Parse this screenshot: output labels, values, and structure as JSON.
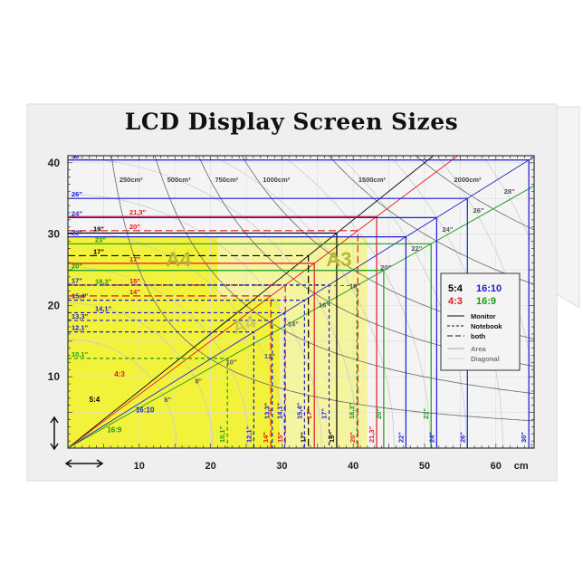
{
  "title": "LCD Display Screen Sizes",
  "chart_data": {
    "type": "diagram",
    "x_unit": "cm",
    "xlim": [
      0,
      65
    ],
    "ylim": [
      0,
      41
    ],
    "x_ticks": [
      "10",
      "20",
      "30",
      "40",
      "50",
      "60"
    ],
    "y_ticks": [
      "10",
      "20",
      "30",
      "40"
    ],
    "aspects": [
      {
        "name": "5:4",
        "w": 5,
        "h": 4,
        "color": "#000000"
      },
      {
        "name": "4:3",
        "w": 4,
        "h": 3,
        "color": "#e8161b"
      },
      {
        "name": "16:10",
        "w": 16,
        "h": 10,
        "color": "#1a1ad6"
      },
      {
        "name": "16:9",
        "w": 16,
        "h": 9,
        "color": "#1a9a1a"
      }
    ],
    "screens": [
      {
        "label": "17\"",
        "aspect": "5:4",
        "kind": "both"
      },
      {
        "label": "19\"",
        "aspect": "5:4",
        "kind": "monitor"
      },
      {
        "label": "14\"",
        "aspect": "4:3",
        "kind": "both"
      },
      {
        "label": "15\"",
        "aspect": "4:3",
        "kind": "both"
      },
      {
        "label": "17\"",
        "aspect": "4:3",
        "kind": "monitor"
      },
      {
        "label": "20\"",
        "aspect": "4:3",
        "kind": "both"
      },
      {
        "label": "21,3\"",
        "aspect": "4:3",
        "kind": "monitor"
      },
      {
        "label": "12,1\"",
        "aspect": "16:10",
        "kind": "notebook"
      },
      {
        "label": "13,3\"",
        "aspect": "16:10",
        "kind": "notebook"
      },
      {
        "label": "14,1\"",
        "aspect": "16:10",
        "kind": "notebook"
      },
      {
        "label": "15,4\"",
        "aspect": "16:10",
        "kind": "notebook"
      },
      {
        "label": "17\"",
        "aspect": "16:10",
        "kind": "notebook"
      },
      {
        "label": "22\"",
        "aspect": "16:10",
        "kind": "monitor"
      },
      {
        "label": "24\"",
        "aspect": "16:10",
        "kind": "monitor"
      },
      {
        "label": "26\"",
        "aspect": "16:10",
        "kind": "monitor"
      },
      {
        "label": "30\"",
        "aspect": "16:10",
        "kind": "monitor"
      },
      {
        "label": "10,1\"",
        "aspect": "16:9",
        "kind": "notebook"
      },
      {
        "label": "18,3\"",
        "aspect": "16:9",
        "kind": "notebook"
      },
      {
        "label": "20\"",
        "aspect": "16:9",
        "kind": "monitor"
      },
      {
        "label": "23\"",
        "aspect": "16:9",
        "kind": "monitor"
      }
    ],
    "area_curves": [
      "250cm²",
      "500cm²",
      "750cm²",
      "1000cm²",
      "1500cm²",
      "2000cm²"
    ],
    "diagonal_arcs": [
      "6\"",
      "8\"",
      "10\"",
      "12\"",
      "14\"",
      "16\"",
      "18\"",
      "20\"",
      "22\"",
      "24\"",
      "26\"",
      "28\""
    ],
    "paper_sizes": [
      {
        "label": "A4",
        "w": 21,
        "h": 29.7,
        "color": "#f2f23a"
      },
      {
        "label": "A4",
        "w": 29.7,
        "h": 21,
        "color": "#f2f23a"
      },
      {
        "label": "A3",
        "w": 42,
        "h": 29.7,
        "color": "#f5f5a0"
      }
    ],
    "legend": {
      "position": "right",
      "aspects": [
        "5:4",
        "16:10",
        "4:3",
        "16:9"
      ],
      "line_types": [
        "Monitor",
        "Notebook",
        "both",
        "Area",
        "Diagonal"
      ]
    },
    "x_unit_label": "cm"
  }
}
